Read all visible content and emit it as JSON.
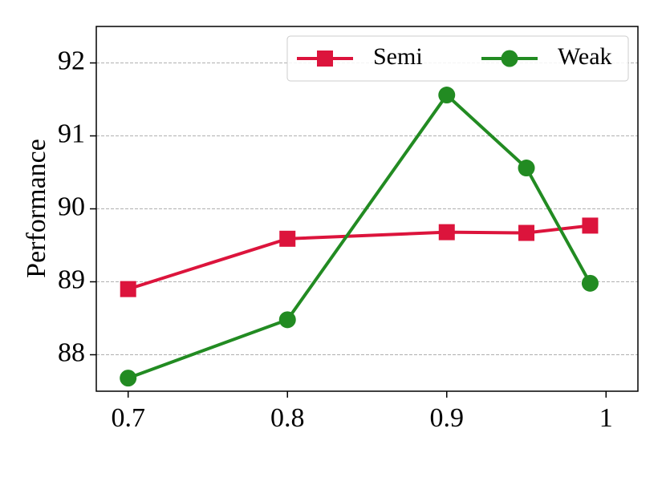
{
  "chart_data": {
    "type": "line",
    "y_label": "Performance",
    "x": [
      0.7,
      0.8,
      0.9,
      0.95,
      0.99
    ],
    "series": [
      {
        "name": "Semi",
        "color": "#dc143c",
        "marker": "square",
        "values": [
          88.9,
          89.59,
          89.68,
          89.67,
          89.77
        ]
      },
      {
        "name": "Weak",
        "color": "#228b22",
        "marker": "circle",
        "values": [
          87.68,
          88.48,
          91.56,
          90.56,
          88.98
        ]
      }
    ],
    "xlim": [
      0.68,
      1.02
    ],
    "xticks": [
      0.7,
      0.8,
      0.9,
      1
    ],
    "ylim": [
      87.5,
      92.5
    ],
    "yticks": [
      88,
      89,
      90,
      91,
      92
    ],
    "grid": true,
    "legend_loc": "upper right"
  }
}
